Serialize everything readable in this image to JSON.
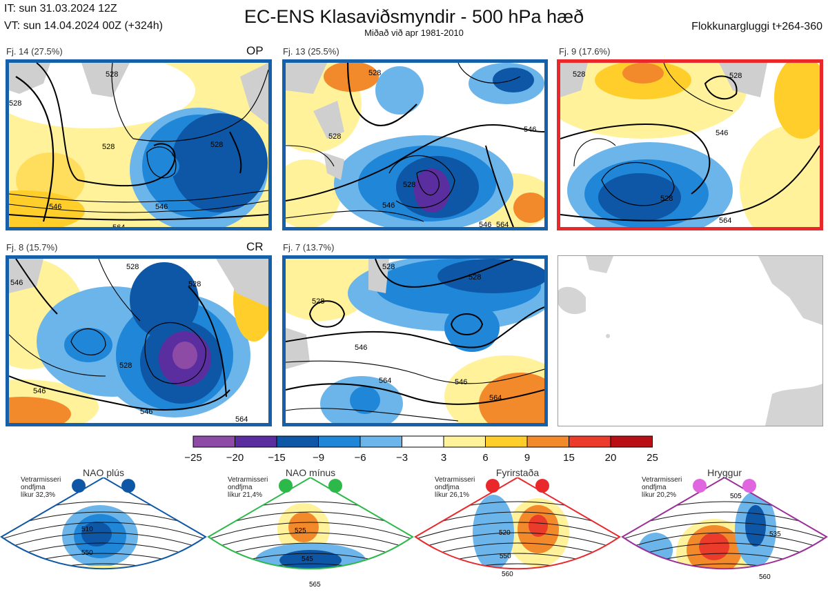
{
  "header": {
    "it": "IT: sun 31.03.2024 12Z",
    "vt": "VT: sun 14.04.2024 00Z  (+324h)",
    "title": "EC-ENS Klasaviðsmyndir - 500 hPa hæð",
    "subtitle": "Miðað við apr 1981-2010",
    "window": "Flokkunargluggi t+264-360"
  },
  "panels": [
    {
      "label": "Fj. 14 (27.5%)",
      "tag": "OP",
      "border": "blue",
      "contours": [
        "528",
        "546",
        "546",
        "528",
        "564",
        "528",
        "528"
      ]
    },
    {
      "label": "Fj. 13 (25.5%)",
      "tag": "",
      "border": "blue",
      "contours": [
        "528",
        "528",
        "546",
        "528",
        "546",
        "546",
        "564"
      ]
    },
    {
      "label": "Fj. 9 (17.6%)",
      "tag": "",
      "border": "red",
      "contours": [
        "528",
        "528",
        "546",
        "528",
        "564"
      ]
    },
    {
      "label": "Fj. 8 (15.7%)",
      "tag": "CR",
      "border": "blue",
      "contours": [
        "546",
        "528",
        "528",
        "546",
        "528",
        "546",
        "564"
      ]
    },
    {
      "label": "Fj. 7 (13.7%)",
      "tag": "",
      "border": "blue",
      "contours": [
        "528",
        "528",
        "528",
        "546",
        "564",
        "546",
        "564"
      ]
    }
  ],
  "colorbar": {
    "ticks": [
      "−25",
      "−20",
      "−15",
      "−9",
      "−6",
      "−3",
      "3",
      "6",
      "9",
      "15",
      "20",
      "25"
    ],
    "colors": [
      "#8e4ba6",
      "#5b2ea0",
      "#0d57a6",
      "#1f86d8",
      "#6bb5ea",
      "#ffffff",
      "#fff29a",
      "#ffce2b",
      "#f28a2c",
      "#ea3b2b",
      "#b80f15"
    ]
  },
  "regimes": [
    {
      "title": "NAO plús",
      "prob": "Vetrarmisseri\nondfjma\nlíkur 32,3%",
      "color": "#0d57a6",
      "contours": [
        "510",
        "550"
      ]
    },
    {
      "title": "NAO mínus",
      "prob": "Vetrarmisseri\nondfjma\nlíkur 21,4%",
      "color": "#2db84a",
      "contours": [
        "525",
        "545",
        "565"
      ]
    },
    {
      "title": "Fyrirstaða",
      "prob": "Vetrarmisseri\nondfjma\nlíkur 26,1%",
      "color": "#e8282a",
      "contours": [
        "520",
        "550",
        "560"
      ]
    },
    {
      "title": "Hryggur",
      "prob": "Vetrarmisseri\nondfjma\nlíkur 20,2%",
      "color": "#9a2f9a",
      "contours": [
        "505",
        "535",
        "560"
      ]
    }
  ],
  "chart_data": {
    "type": "heatmap",
    "title": "EC-ENS Klasaviðsmyndir - 500 hPa hæð",
    "variable": "500 hPa geopotential height (dam) with anomaly shading",
    "contour_levels": [
      528,
      546,
      564
    ],
    "anomaly_bins": [
      -25,
      -20,
      -15,
      -9,
      -6,
      -3,
      3,
      6,
      9,
      15,
      20,
      25
    ],
    "clusters": [
      {
        "name": "Fj. 14",
        "share_pct": 27.5,
        "tag": "OP"
      },
      {
        "name": "Fj. 13",
        "share_pct": 25.5
      },
      {
        "name": "Fj. 9",
        "share_pct": 17.6
      },
      {
        "name": "Fj. 8",
        "share_pct": 15.7,
        "tag": "CR"
      },
      {
        "name": "Fj. 7",
        "share_pct": 13.7
      }
    ],
    "regime_climatology_pct": [
      {
        "name": "NAO plús",
        "value": 32.3
      },
      {
        "name": "NAO mínus",
        "value": 21.4
      },
      {
        "name": "Fyrirstaða",
        "value": 26.1
      },
      {
        "name": "Hryggur",
        "value": 20.2
      }
    ]
  }
}
